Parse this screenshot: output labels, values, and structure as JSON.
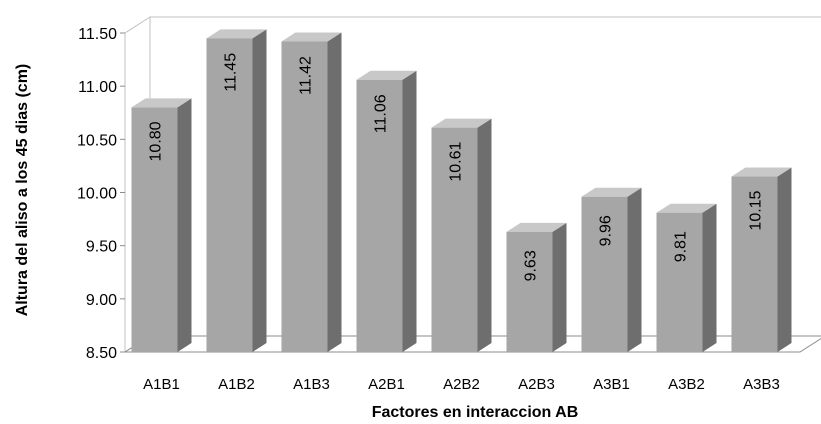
{
  "chart_data": {
    "type": "bar",
    "style": "3d-column",
    "categories": [
      "A1B1",
      "A1B2",
      "A1B3",
      "A2B1",
      "A2B2",
      "A2B3",
      "A3B1",
      "A3B2",
      "A3B3"
    ],
    "values": [
      10.8,
      11.45,
      11.42,
      11.06,
      10.61,
      9.63,
      9.96,
      9.81,
      10.15
    ],
    "data_labels": [
      "10.80",
      "11.45",
      "11.42",
      "11.06",
      "10.61",
      "9.63",
      "9.96",
      "9.81",
      "10.15"
    ],
    "xlabel": "Factores en interaccion AB",
    "ylabel": "Altura del aliso a los 45 dias (cm)",
    "ylim": [
      8.5,
      11.5
    ],
    "yticks": [
      8.5,
      9.0,
      9.5,
      10.0,
      10.5,
      11.0,
      11.5
    ],
    "ytick_labels": [
      "8.50",
      "9.00",
      "9.50",
      "10.00",
      "10.50",
      "11.00",
      "11.50"
    ],
    "grid": false,
    "legend": "none",
    "colors": {
      "bar_front": "#a6a6a6",
      "bar_top": "#c8c8c8",
      "bar_side": "#6e6e6e",
      "wall": "#c0c0c0"
    }
  }
}
